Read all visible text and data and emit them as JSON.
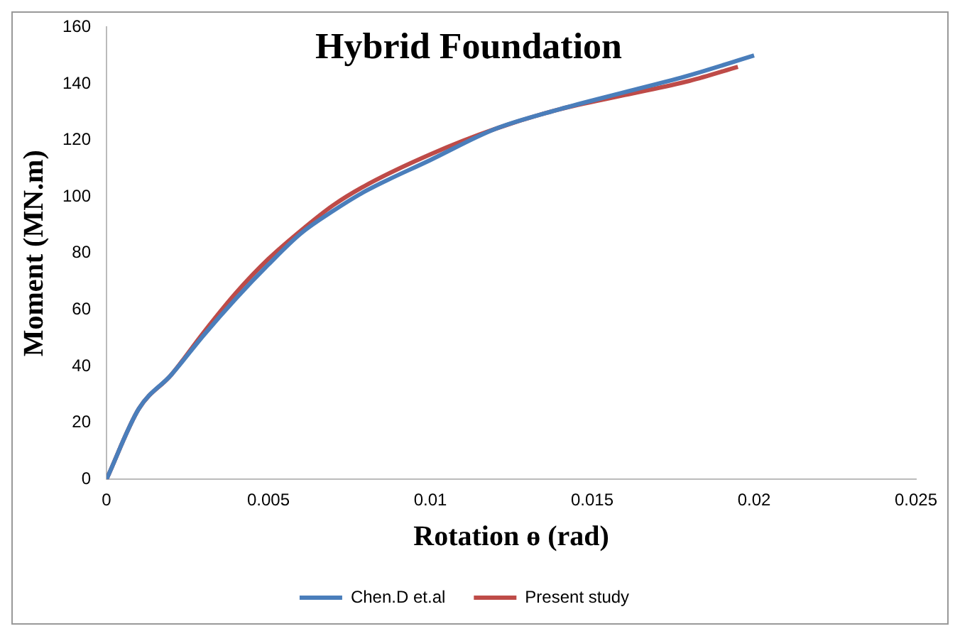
{
  "chart_data": {
    "type": "line",
    "title": "Hybrid Foundation",
    "xlabel": "Rotation ɵ (rad)",
    "ylabel": "Moment (MN.m)",
    "xlim": [
      0,
      0.025
    ],
    "xticks": [
      0,
      0.005,
      0.01,
      0.015,
      0.02,
      0.025
    ],
    "ylim": [
      0,
      160
    ],
    "yticks": [
      0,
      20,
      40,
      60,
      80,
      100,
      120,
      140,
      160
    ],
    "grid": false,
    "legend": "bottom",
    "marker": "none",
    "line_style": "solid",
    "series": [
      {
        "name": "Chen.D et.al",
        "color": "#4a7ebb",
        "x": [
          0,
          0.001,
          0.002,
          0.003,
          0.004,
          0.005,
          0.006,
          0.007,
          0.008,
          0.01,
          0.012,
          0.014,
          0.016,
          0.018,
          0.02
        ],
        "values": [
          0,
          25,
          37,
          51,
          64,
          76,
          87,
          95,
          102,
          113,
          124,
          131,
          137,
          143,
          150
        ]
      },
      {
        "name": "Present study",
        "color": "#be4b48",
        "x": [
          0,
          0.001,
          0.002,
          0.003,
          0.004,
          0.005,
          0.006,
          0.007,
          0.008,
          0.01,
          0.012,
          0.014,
          0.016,
          0.018,
          0.0195
        ],
        "values": [
          0,
          25,
          37,
          52,
          66,
          78,
          88,
          97,
          104,
          115,
          124,
          131,
          136,
          141,
          146
        ]
      }
    ]
  }
}
